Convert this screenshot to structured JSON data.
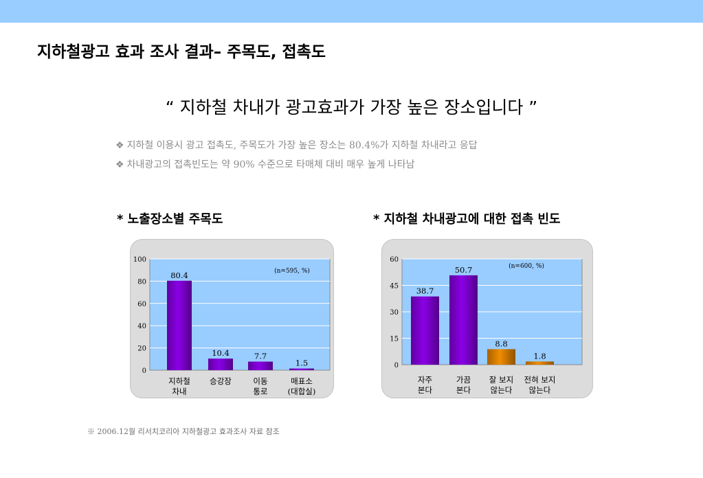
{
  "slide": {
    "title": "지하철광고 효과 조사 결과– 주목도, 접촉도",
    "headline": "“ 지하철 차내가 광고효과가 가장 높은 장소입니다 ”",
    "bullet_mark": "❖",
    "bullets": [
      "지하철 이용시 광고 접촉도, 주목도가 가장 높은 장소는 80.4%가 지하철 차내라고 응답",
      "차내광고의 접촉빈도는 약 90% 수준으로 타매체 대비 매우 높게 나타남"
    ],
    "footnote": "※ 2006.12월 리서치코리아 지하철광고 효과조사 자료 참조"
  },
  "chart_data": [
    {
      "type": "bar",
      "title": "* 노출장소별 주목도",
      "note": "(n=595, %)",
      "categories": [
        [
          "지하철",
          "차내"
        ],
        [
          "승강장"
        ],
        [
          "이동",
          "통로"
        ],
        [
          "매표소",
          "(대합실)"
        ]
      ],
      "values": [
        80.4,
        10.4,
        7.7,
        1.5
      ],
      "value_labels": [
        "80.4",
        "10.4",
        "7.7",
        "1.5"
      ],
      "yticks": [
        "0",
        "20",
        "40",
        "60",
        "80",
        "100"
      ],
      "ylim": [
        0,
        100
      ],
      "grid": true,
      "colors": [
        "#8a00e6",
        "#8a00e6",
        "#8a00e6",
        "#8a00e6"
      ]
    },
    {
      "type": "bar",
      "title": "* 지하철 차내광고에 대한 접촉 빈도",
      "note": "(n=600, %)",
      "categories": [
        [
          "자주",
          "본다"
        ],
        [
          "가끔",
          "본다"
        ],
        [
          "잘 보지",
          "않는다"
        ],
        [
          "전혀 보지",
          "않는다"
        ]
      ],
      "values": [
        38.7,
        50.7,
        8.8,
        1.8
      ],
      "value_labels": [
        "38.7",
        "50.7",
        "8.8",
        "1.8"
      ],
      "yticks": [
        "0",
        "15",
        "30",
        "45",
        "60"
      ],
      "ylim": [
        0,
        60
      ],
      "grid": true,
      "colors": [
        "#8a00e6",
        "#8a00e6",
        "#f08c00",
        "#f08c00"
      ]
    }
  ]
}
